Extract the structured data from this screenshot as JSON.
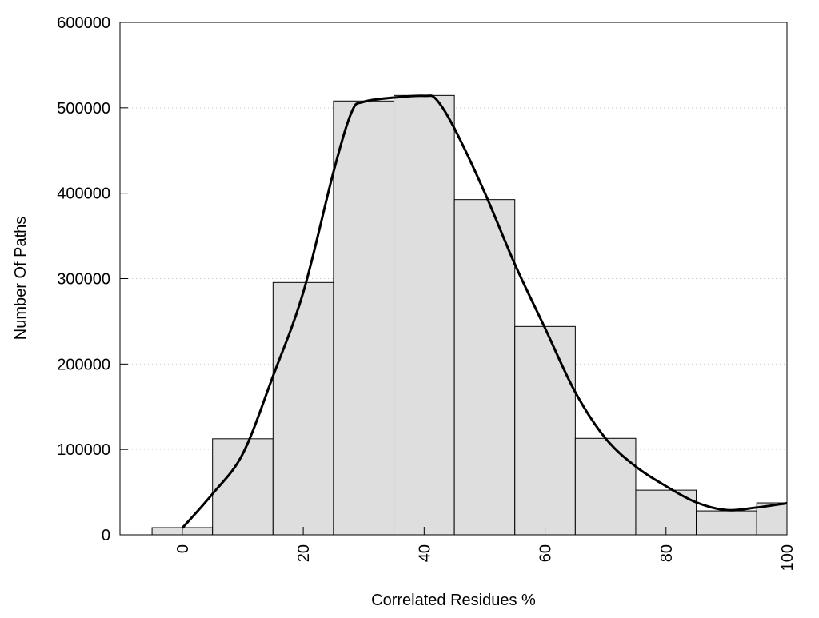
{
  "chart_data": {
    "type": "bar",
    "title": "",
    "xlabel": "Correlated Residues %",
    "ylabel": "Number Of Paths",
    "xlim": [
      -10.3,
      100
    ],
    "ylim": [
      0,
      600000
    ],
    "grid": "horizontal dotted",
    "bin_width": 10,
    "x": [
      0,
      10,
      20,
      30,
      40,
      50,
      60,
      70,
      80,
      90,
      100
    ],
    "values": [
      8400,
      112500,
      295500,
      508000,
      514500,
      392500,
      244000,
      113000,
      52300,
      28000,
      37400
    ],
    "bar_color": "#dedede",
    "density_curve": {
      "x": [
        0,
        5,
        10,
        15,
        20,
        25,
        28,
        30,
        35,
        40,
        42,
        45,
        50,
        55,
        60,
        65,
        70,
        75,
        80,
        85,
        90,
        95,
        100
      ],
      "y": [
        8000,
        48000,
        95000,
        186000,
        284000,
        425000,
        495000,
        507000,
        512000,
        514000,
        510000,
        476000,
        401000,
        317000,
        242000,
        167000,
        113000,
        80000,
        57000,
        38000,
        29000,
        32000,
        37000
      ],
      "color": "#000000"
    },
    "xticks": [
      "0",
      "20",
      "40",
      "60",
      "80",
      "100"
    ],
    "xtick_values": [
      0,
      20,
      40,
      60,
      80,
      100
    ],
    "yticks": [
      "0",
      "100000",
      "200000",
      "300000",
      "400000",
      "500000",
      "600000"
    ],
    "ytick_values": [
      0,
      100000,
      200000,
      300000,
      400000,
      500000,
      600000
    ]
  }
}
